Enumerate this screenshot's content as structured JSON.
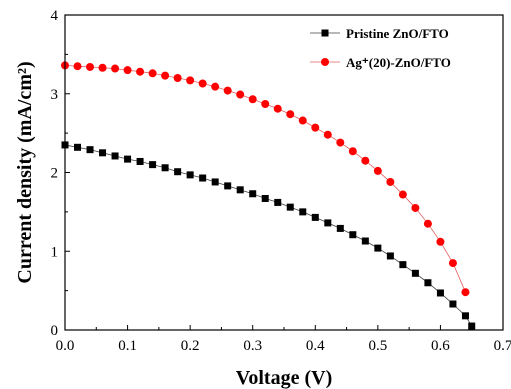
{
  "chart_data": {
    "type": "line",
    "title": "",
    "xlabel": "Voltage (V)",
    "ylabel": "Current density (mA/cm²)",
    "xlim": [
      0.0,
      0.7
    ],
    "ylim": [
      0,
      4
    ],
    "x_ticks": [
      "0.0",
      "0.1",
      "0.2",
      "0.3",
      "0.4",
      "0.5",
      "0.6",
      "0.7"
    ],
    "y_ticks": [
      "0",
      "1",
      "2",
      "3",
      "4"
    ],
    "grid": false,
    "legend_position": "top-right",
    "series": [
      {
        "name": "Pristine ZnO/FTO",
        "marker": "square",
        "color": "#000000",
        "points": [
          [
            0.0,
            2.35
          ],
          [
            0.02,
            2.32
          ],
          [
            0.04,
            2.29
          ],
          [
            0.06,
            2.25
          ],
          [
            0.08,
            2.21
          ],
          [
            0.1,
            2.17
          ],
          [
            0.12,
            2.14
          ],
          [
            0.14,
            2.1
          ],
          [
            0.16,
            2.06
          ],
          [
            0.18,
            2.01
          ],
          [
            0.2,
            1.97
          ],
          [
            0.22,
            1.93
          ],
          [
            0.24,
            1.88
          ],
          [
            0.26,
            1.83
          ],
          [
            0.28,
            1.78
          ],
          [
            0.3,
            1.73
          ],
          [
            0.32,
            1.67
          ],
          [
            0.34,
            1.62
          ],
          [
            0.36,
            1.56
          ],
          [
            0.38,
            1.5
          ],
          [
            0.4,
            1.43
          ],
          [
            0.42,
            1.36
          ],
          [
            0.44,
            1.29
          ],
          [
            0.46,
            1.21
          ],
          [
            0.48,
            1.13
          ],
          [
            0.5,
            1.04
          ],
          [
            0.52,
            0.94
          ],
          [
            0.54,
            0.83
          ],
          [
            0.56,
            0.72
          ],
          [
            0.58,
            0.6
          ],
          [
            0.6,
            0.47
          ],
          [
            0.62,
            0.33
          ],
          [
            0.64,
            0.18
          ],
          [
            0.65,
            0.05
          ]
        ]
      },
      {
        "name": "Ag⁺(20)-ZnO/FTO",
        "marker": "circle",
        "color": "#ff0000",
        "points": [
          [
            0.0,
            3.36
          ],
          [
            0.02,
            3.35
          ],
          [
            0.04,
            3.34
          ],
          [
            0.06,
            3.33
          ],
          [
            0.08,
            3.32
          ],
          [
            0.1,
            3.3
          ],
          [
            0.12,
            3.28
          ],
          [
            0.14,
            3.26
          ],
          [
            0.16,
            3.23
          ],
          [
            0.18,
            3.2
          ],
          [
            0.2,
            3.17
          ],
          [
            0.22,
            3.13
          ],
          [
            0.24,
            3.09
          ],
          [
            0.26,
            3.04
          ],
          [
            0.28,
            2.99
          ],
          [
            0.3,
            2.93
          ],
          [
            0.32,
            2.87
          ],
          [
            0.34,
            2.81
          ],
          [
            0.36,
            2.74
          ],
          [
            0.38,
            2.66
          ],
          [
            0.4,
            2.57
          ],
          [
            0.42,
            2.48
          ],
          [
            0.44,
            2.38
          ],
          [
            0.46,
            2.27
          ],
          [
            0.48,
            2.15
          ],
          [
            0.5,
            2.02
          ],
          [
            0.52,
            1.88
          ],
          [
            0.54,
            1.72
          ],
          [
            0.56,
            1.55
          ],
          [
            0.58,
            1.35
          ],
          [
            0.6,
            1.12
          ],
          [
            0.62,
            0.85
          ],
          [
            0.64,
            0.48
          ]
        ]
      }
    ]
  }
}
